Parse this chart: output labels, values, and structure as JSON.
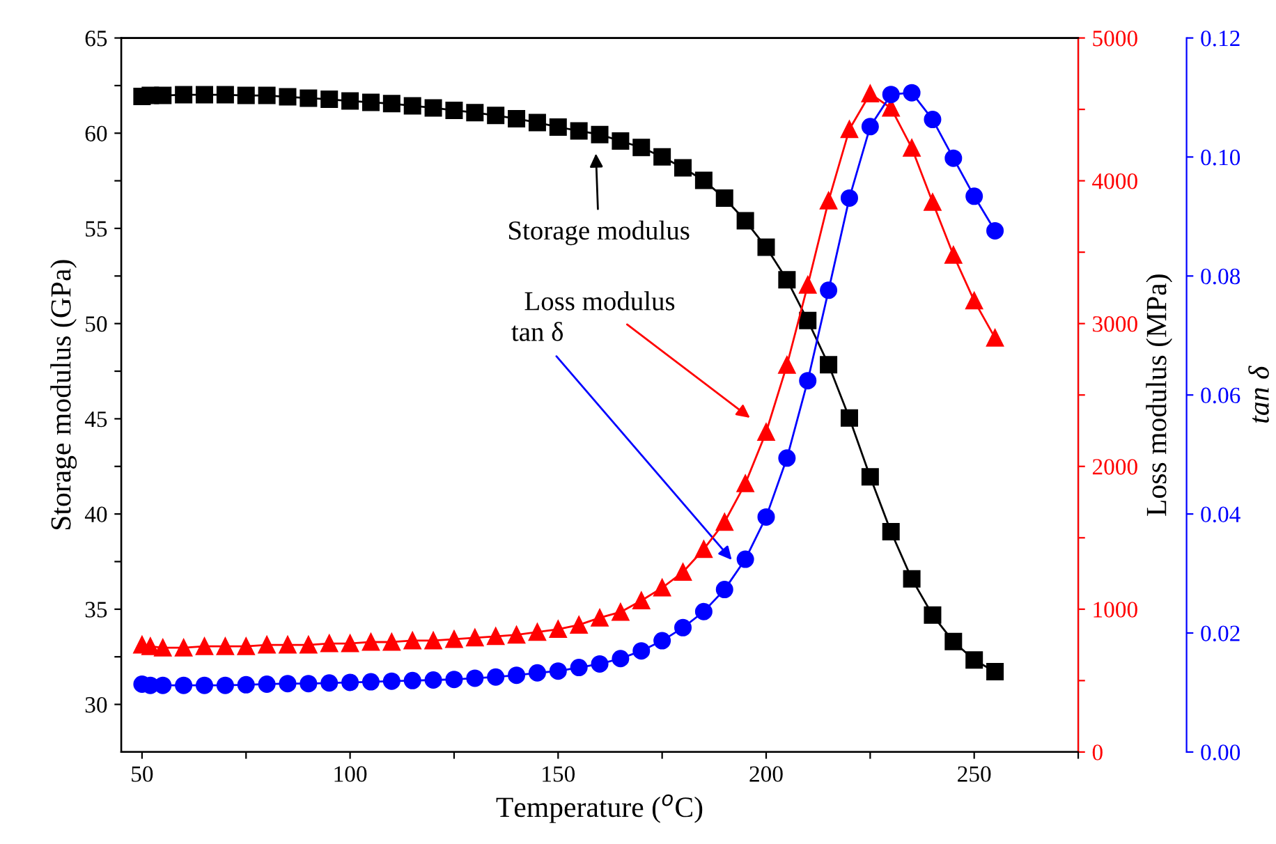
{
  "chart_data": {
    "type": "line",
    "xlabel": "Temperature ($^{o}$C)",
    "ylabel": "Storage modulus (GPa)",
    "y2label": "Loss modulus (MPa)",
    "y3label": "tan δ",
    "x": [
      50,
      52,
      55,
      60,
      65,
      70,
      75,
      80,
      85,
      90,
      95,
      100,
      105,
      110,
      115,
      120,
      125,
      130,
      135,
      140,
      145,
      150,
      155,
      160,
      165,
      170,
      175,
      180,
      185,
      190,
      195,
      200,
      205,
      210,
      215,
      220,
      225,
      230,
      235,
      240,
      245,
      250,
      255
    ],
    "series": [
      {
        "color": "#000000",
        "marker": "square",
        "values": [
          61.93,
          61.98,
          61.98,
          62.02,
          62.02,
          62.02,
          61.98,
          61.98,
          61.91,
          61.84,
          61.78,
          61.69,
          61.62,
          61.55,
          61.44,
          61.33,
          61.2,
          61.08,
          60.93,
          60.76,
          60.56,
          60.32,
          60.12,
          59.93,
          59.59,
          59.25,
          58.76,
          58.18,
          57.52,
          56.59,
          55.4,
          54.01,
          52.3,
          50.16,
          47.84,
          45.04,
          41.95,
          39.07,
          36.59,
          34.69,
          33.3,
          32.33,
          31.72
        ]
      },
      {
        "color": "#ff0000",
        "marker": "triangle",
        "axis": "y2",
        "values": [
          750,
          740,
          730,
          730,
          740,
          740,
          740,
          750,
          750,
          750,
          760,
          760,
          770,
          770,
          780,
          780,
          790,
          800,
          810,
          820,
          840,
          860,
          890,
          940,
          980,
          1060,
          1150,
          1260,
          1420,
          1610,
          1880,
          2240,
          2710,
          3270,
          3860,
          4360,
          4610,
          4510,
          4230,
          3850,
          3480,
          3160,
          2900
        ]
      },
      {
        "color": "#0000ff",
        "marker": "circle",
        "axis": "y3",
        "values": [
          0.0114,
          0.0112,
          0.0112,
          0.0112,
          0.0112,
          0.0112,
          0.0113,
          0.0114,
          0.0115,
          0.0115,
          0.0116,
          0.0117,
          0.0118,
          0.0119,
          0.012,
          0.0121,
          0.0122,
          0.0124,
          0.0126,
          0.0129,
          0.0133,
          0.0136,
          0.0142,
          0.0148,
          0.0157,
          0.017,
          0.0187,
          0.0209,
          0.0236,
          0.0273,
          0.0324,
          0.0395,
          0.0494,
          0.0624,
          0.0776,
          0.0931,
          0.1051,
          0.1105,
          0.1108,
          0.1063,
          0.0998,
          0.0934,
          0.0876
        ]
      }
    ],
    "annotations": [
      "Storage modulus",
      "Loss modulus",
      "tan δ"
    ],
    "xlim": [
      45,
      275
    ],
    "xticks": [
      50,
      {
        "value": 75,
        "label": null
      },
      100,
      {
        "value": 125,
        "label": null
      },
      150,
      {
        "value": 175,
        "label": null
      },
      200,
      {
        "value": 225,
        "label": null
      },
      250,
      {
        "value": 275,
        "label": null
      }
    ],
    "ylim": [
      27.5,
      65
    ],
    "yticks": [
      30,
      {
        "value": 32.5,
        "label": null
      },
      35,
      {
        "value": 37.5,
        "label": null
      },
      40,
      {
        "value": 42.5,
        "label": null
      },
      45,
      {
        "value": 47.5,
        "label": null
      },
      50,
      {
        "value": 52.5,
        "label": null
      },
      55,
      {
        "value": 57.5,
        "label": null
      },
      60,
      {
        "value": 62.5,
        "label": null
      },
      65
    ],
    "y2lim": [
      0,
      5000
    ],
    "y2ticks": [
      0,
      {
        "value": 500,
        "label": null
      },
      1000,
      {
        "value": 1500,
        "label": null
      },
      2000,
      {
        "value": 2500,
        "label": null
      },
      3000,
      {
        "value": 3500,
        "label": null
      },
      4000,
      {
        "value": 4500,
        "label": null
      },
      5000
    ],
    "y3lim": [
      0,
      0.12
    ],
    "y3ticks": [
      {
        "value": 0,
        "label": "0.00"
      },
      {
        "value": 0.02,
        "label": "0.02"
      },
      {
        "value": 0.04,
        "label": "0.04"
      },
      {
        "value": 0.06,
        "label": "0.06"
      },
      {
        "value": 0.08,
        "label": "0.08"
      },
      {
        "value": 0.1,
        "label": "0.10"
      },
      {
        "value": 0.12,
        "label": "0.12"
      }
    ],
    "grid": false,
    "legend": false
  }
}
